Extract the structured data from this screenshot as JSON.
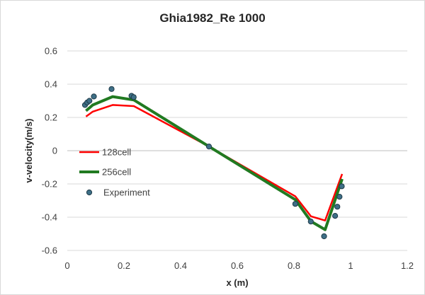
{
  "chart_data": {
    "type": "line",
    "title": "Ghia1982_Re 1000",
    "xlabel": "x (m)",
    "ylabel": "v-velocity(m/s)",
    "xlim": [
      0,
      1.2
    ],
    "ylim": [
      -0.6,
      0.6
    ],
    "x_ticks": [
      "0",
      "0.2",
      "0.4",
      "0.6",
      "0.8",
      "1",
      "1.2"
    ],
    "y_ticks": [
      "0.6",
      "0.4",
      "0.2",
      "0",
      "-0.2",
      "-0.4",
      "-0.6"
    ],
    "grid": "horizontal",
    "legend_position": "left",
    "series": [
      {
        "name": "128cell",
        "style": "line",
        "color": "#ff0000",
        "x": [
          0.066,
          0.09,
          0.16,
          0.235,
          0.5,
          0.805,
          0.86,
          0.91,
          0.97
        ],
        "y": [
          0.205,
          0.235,
          0.275,
          0.268,
          0.025,
          -0.275,
          -0.395,
          -0.42,
          -0.14
        ]
      },
      {
        "name": "256cell",
        "style": "line",
        "color": "#217a21",
        "x": [
          0.066,
          0.09,
          0.16,
          0.235,
          0.5,
          0.805,
          0.86,
          0.91,
          0.97
        ],
        "y": [
          0.24,
          0.275,
          0.325,
          0.305,
          0.025,
          -0.295,
          -0.425,
          -0.475,
          -0.17
        ]
      },
      {
        "name": "Experiment",
        "style": "marker",
        "color": "#3e6f86",
        "x": [
          0.0625,
          0.0703,
          0.0781,
          0.0938,
          0.1563,
          0.2266,
          0.2344,
          0.5,
          0.8047,
          0.8594,
          0.9063,
          0.9453,
          0.9531,
          0.9609,
          0.9688
        ],
        "y": [
          0.275,
          0.29,
          0.3,
          0.326,
          0.371,
          0.33,
          0.322,
          0.025,
          -0.32,
          -0.426,
          -0.515,
          -0.392,
          -0.337,
          -0.277,
          -0.214
        ]
      }
    ]
  }
}
